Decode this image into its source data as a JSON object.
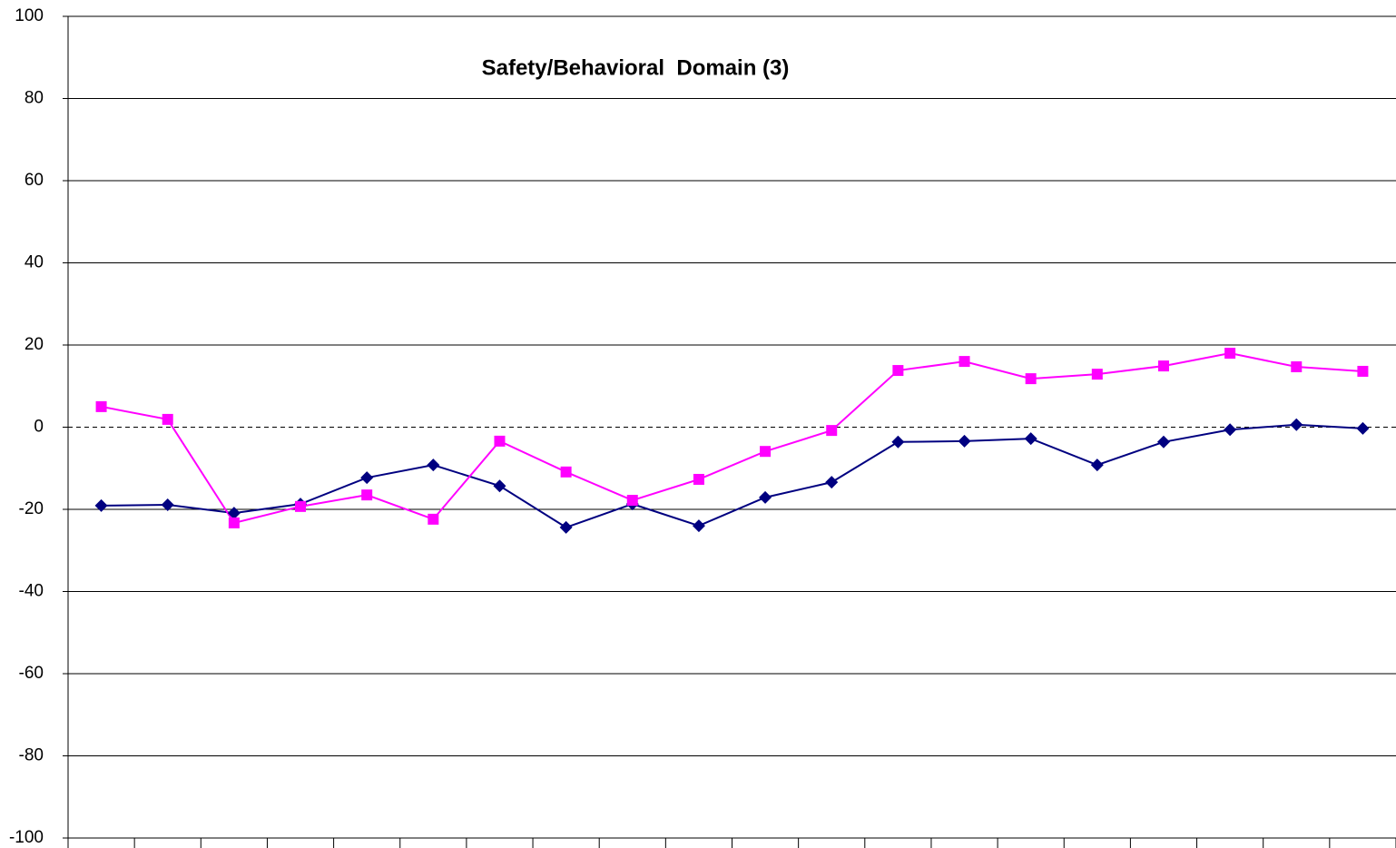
{
  "chart_data": {
    "type": "line",
    "title": "Safety/Behavioral  Domain (3)",
    "categories": [
      null,
      null,
      null,
      null,
      null,
      null,
      null,
      null,
      null,
      null,
      null,
      null,
      null,
      null,
      null,
      null,
      null,
      null,
      null,
      null
    ],
    "series": [
      {
        "color": "#000080",
        "marker": "diamond",
        "values": [
          -19.1,
          -18.9,
          -20.9,
          -18.7,
          -12.3,
          -9.2,
          -14.3,
          -24.4,
          -18.7,
          -24.0,
          -17.1,
          -13.4,
          -3.6,
          -3.4,
          -2.8,
          -9.2,
          -3.6,
          -0.6,
          0.6,
          -0.3
        ]
      },
      {
        "color": "#ff00ff",
        "marker": "square",
        "values": [
          5.0,
          1.9,
          -23.3,
          -19.3,
          -16.5,
          -22.4,
          -3.4,
          -10.9,
          -17.8,
          -12.7,
          -5.9,
          -0.8,
          13.8,
          16.0,
          11.8,
          12.9,
          14.9,
          18.0,
          14.7,
          13.6
        ]
      }
    ],
    "ylim": [
      -100,
      100
    ],
    "yticks": [
      -100,
      -80,
      -60,
      -40,
      -20,
      0,
      20,
      40,
      60,
      80,
      100
    ],
    "grid": true,
    "zero_line_dashed": true
  }
}
